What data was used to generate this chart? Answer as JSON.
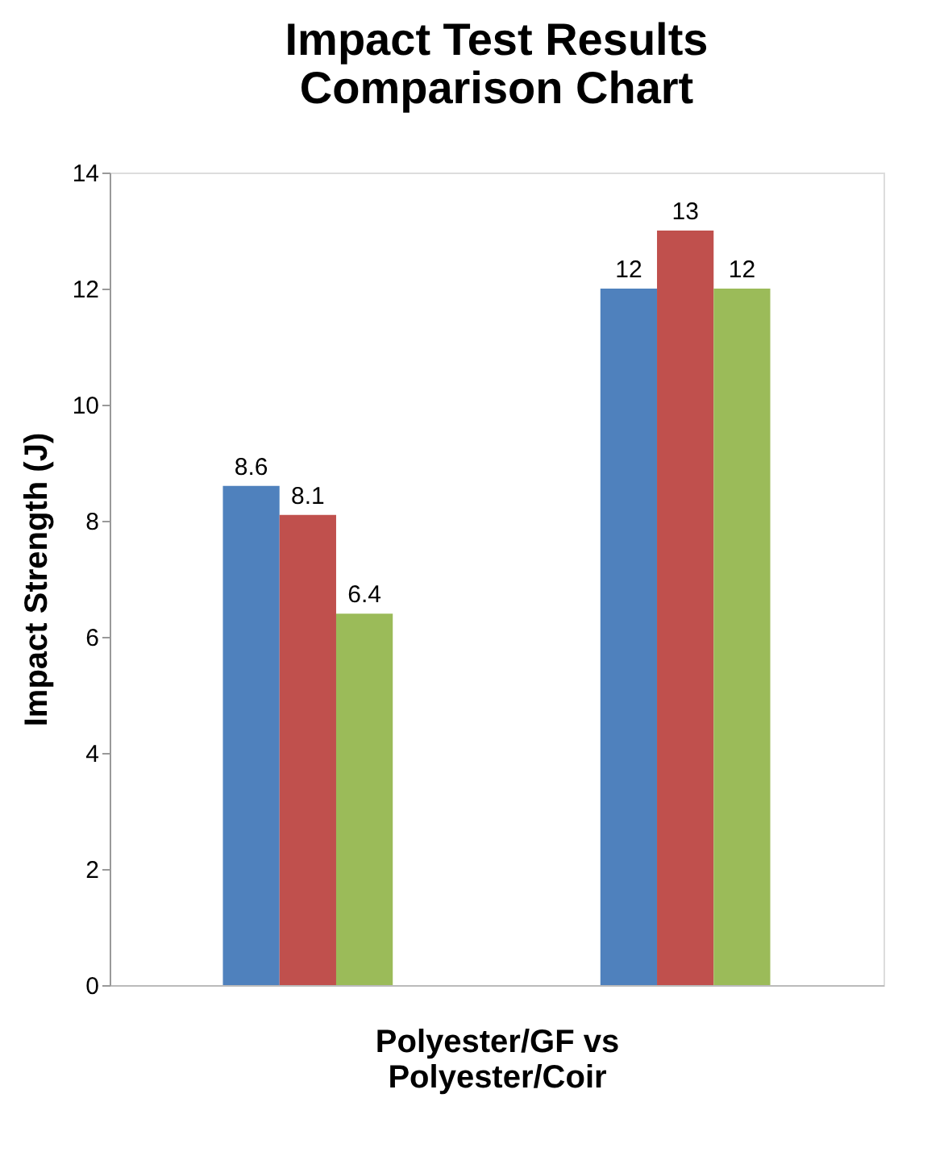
{
  "chart_data": {
    "type": "bar",
    "title": "Impact Test Results\nComparison Chart",
    "ylabel": "Impact Strength  (J)",
    "xlabel": "Polyester/GF vs\nPolyester/Coir",
    "categories": [
      null,
      null
    ],
    "series": [
      {
        "color": "#4f81bd",
        "values": [
          8.6,
          12
        ]
      },
      {
        "color": "#c0504d",
        "values": [
          8.1,
          13
        ]
      },
      {
        "color": "#9bbb59",
        "values": [
          6.4,
          12
        ]
      }
    ],
    "ylim": [
      0,
      14
    ],
    "yticks": [
      0,
      2,
      4,
      6,
      8,
      10,
      12,
      14
    ],
    "grid": false,
    "legend": false,
    "data_labels": true,
    "tick_labels": "y"
  }
}
